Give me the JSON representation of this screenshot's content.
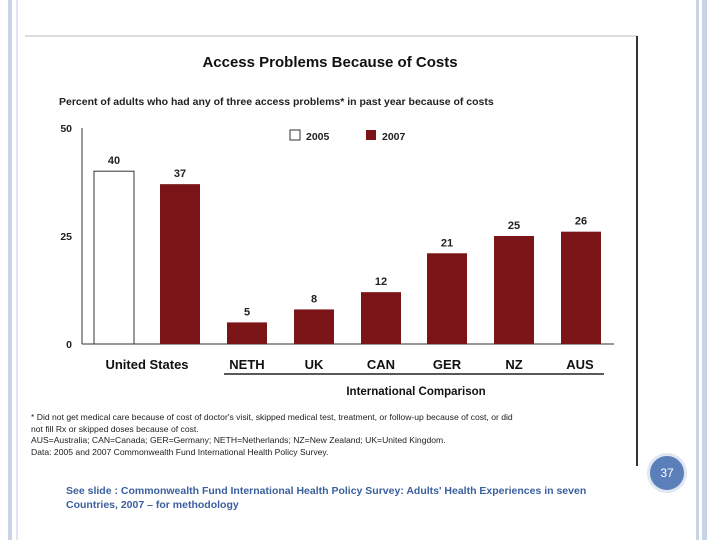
{
  "colors": {
    "series_2005": "#ffffff",
    "series_2007": "#7b1416",
    "accent_blue": "#5b7fb9",
    "border_blue": "#c9d3e6"
  },
  "chart_data": {
    "type": "bar",
    "title": "Access Problems Because of Costs",
    "subtitle": "Percent of adults who had any of three access problems* in past year because of costs",
    "xlabel": "International Comparison",
    "ylabel": "",
    "ylim": [
      0,
      50
    ],
    "yticks": [
      "0",
      "25",
      "50"
    ],
    "legend": {
      "placement": "top",
      "items": [
        "2005",
        "2007"
      ]
    },
    "categories": [
      "United States",
      "NETH",
      "UK",
      "CAN",
      "GER",
      "NZ",
      "AUS"
    ],
    "bars": [
      {
        "category": "United States",
        "series": "2005",
        "value": 40
      },
      {
        "category": "United States",
        "series": "2007",
        "value": 37
      },
      {
        "category": "NETH",
        "series": "2007",
        "value": 5
      },
      {
        "category": "UK",
        "series": "2007",
        "value": 8
      },
      {
        "category": "CAN",
        "series": "2007",
        "value": 12
      },
      {
        "category": "GER",
        "series": "2007",
        "value": 21
      },
      {
        "category": "NZ",
        "series": "2007",
        "value": 25
      },
      {
        "category": "AUS",
        "series": "2007",
        "value": 26
      }
    ],
    "grid": false
  },
  "footnotes": [
    "* Did not get medical care because of cost of doctor's visit, skipped medical test, treatment, or follow-up because of cost, or did",
    "not fill Rx or skipped doses because of cost.",
    "AUS=Australia; CAN=Canada; GER=Germany; NETH=Netherlands; NZ=New Zealand; UK=United Kingdom.",
    "Data: 2005 and 2007 Commonwealth Fund International Health Policy Survey."
  ],
  "slide_number": "37",
  "see_slide": "See slide : Commonwealth Fund International Health Policy Survey: Adults' Health Experiences in seven Countries, 2007 – for methodology"
}
